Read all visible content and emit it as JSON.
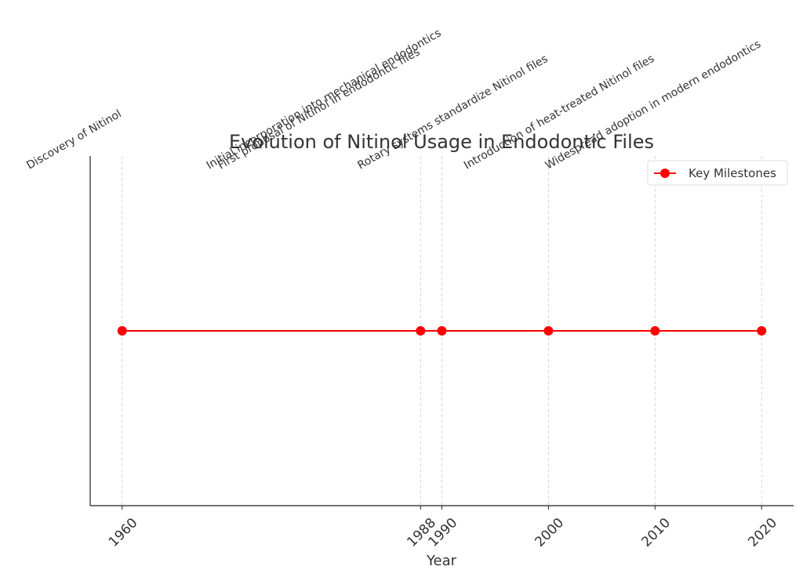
{
  "chart_data": {
    "type": "line",
    "title": "Evolution of Nitinol Usage in Endodontic Files",
    "x_label": "Year",
    "x": [
      1960,
      1988,
      1990,
      2000,
      2010,
      2020
    ],
    "series": [
      {
        "name": "Key Milestones",
        "color": "red",
        "values": [
          1,
          1,
          1,
          1,
          1,
          1
        ]
      }
    ],
    "annotations": [
      "Discovery of Nitinol",
      "First proposal of Nitinol in endodontic files",
      "Initial incorporation into mechanical endodontics",
      "Rotary systems standardize Nitinol files",
      "Introduction of heat-treated Nitinol files",
      "Widespread adoption in modern endodontics"
    ],
    "xlim": [
      1957,
      2023
    ],
    "xticks": [
      1960,
      1988,
      1990,
      2000,
      2010,
      2020
    ],
    "ylim": [
      0,
      2
    ],
    "grid": true,
    "legend": "upper right"
  }
}
